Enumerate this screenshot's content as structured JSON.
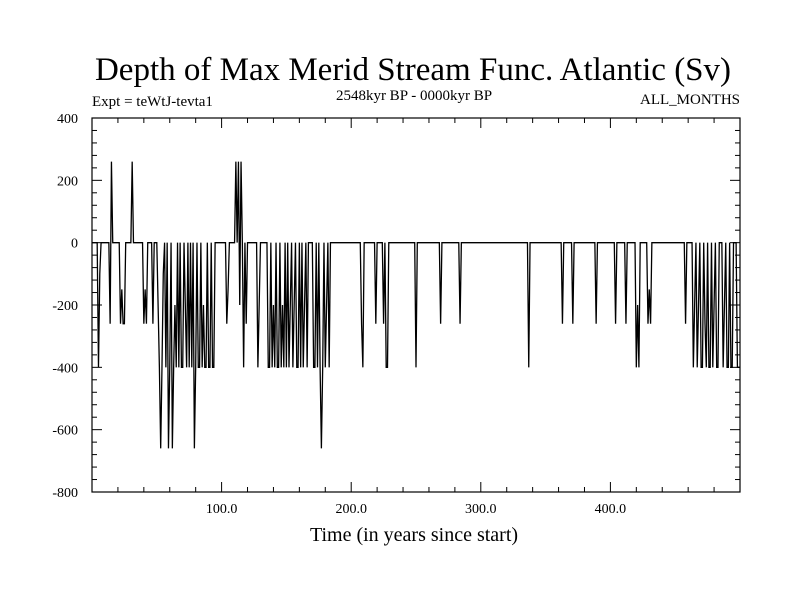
{
  "chart_data": {
    "type": "line",
    "title": "Depth of Max Merid Stream Func. Atlantic (Sv)",
    "left_label": "Expt = teWtJ-tevta1",
    "center_label": "2548kyr BP - 0000kyr BP",
    "right_label": "ALL_MONTHS",
    "xlabel": "Time (in years since start)",
    "ylabel": "",
    "xlim": [
      0,
      500
    ],
    "ylim": [
      -800,
      400
    ],
    "x_ticks": [
      {
        "v": 100,
        "label": "100.0"
      },
      {
        "v": 200,
        "label": "200.0"
      },
      {
        "v": 300,
        "label": "300.0"
      },
      {
        "v": 400,
        "label": "400.0"
      }
    ],
    "y_ticks": [
      {
        "v": 400,
        "label": "400"
      },
      {
        "v": 200,
        "label": "200"
      },
      {
        "v": 0,
        "label": "0"
      },
      {
        "v": -200,
        "label": "-200"
      },
      {
        "v": -400,
        "label": "-400"
      },
      {
        "v": -600,
        "label": "-600"
      },
      {
        "v": -800,
        "label": "-800"
      }
    ],
    "grid": false,
    "series": [
      {
        "name": "",
        "points": [
          [
            0,
            0
          ],
          [
            4,
            0
          ],
          [
            5,
            -400
          ],
          [
            6,
            -100
          ],
          [
            7,
            0
          ],
          [
            13,
            0
          ],
          [
            14,
            -260
          ],
          [
            15,
            260
          ],
          [
            16,
            0
          ],
          [
            21,
            0
          ],
          [
            22,
            -260
          ],
          [
            23,
            -150
          ],
          [
            24,
            -260
          ],
          [
            25,
            -260
          ],
          [
            26,
            0
          ],
          [
            30,
            0
          ],
          [
            31,
            260
          ],
          [
            32,
            0
          ],
          [
            39,
            0
          ],
          [
            40,
            -260
          ],
          [
            41,
            -150
          ],
          [
            42,
            -260
          ],
          [
            43,
            0
          ],
          [
            46,
            0
          ],
          [
            47,
            -260
          ],
          [
            48,
            0
          ],
          [
            50,
            0
          ],
          [
            52,
            -400
          ],
          [
            53,
            -660
          ],
          [
            54,
            -400
          ],
          [
            55,
            -100
          ],
          [
            56,
            0
          ],
          [
            57,
            -400
          ],
          [
            58,
            0
          ],
          [
            59,
            -660
          ],
          [
            60,
            -400
          ],
          [
            61,
            0
          ],
          [
            62,
            -660
          ],
          [
            63,
            -400
          ],
          [
            64,
            -200
          ],
          [
            65,
            -400
          ],
          [
            66,
            0
          ],
          [
            67,
            -400
          ],
          [
            68,
            0
          ],
          [
            69,
            -400
          ],
          [
            70,
            -400
          ],
          [
            71,
            0
          ],
          [
            72,
            -200
          ],
          [
            73,
            -400
          ],
          [
            74,
            0
          ],
          [
            75,
            -400
          ],
          [
            76,
            0
          ],
          [
            77,
            -400
          ],
          [
            78,
            0
          ],
          [
            79,
            -660
          ],
          [
            80,
            -400
          ],
          [
            81,
            0
          ],
          [
            82,
            -400
          ],
          [
            83,
            -400
          ],
          [
            84,
            0
          ],
          [
            85,
            -400
          ],
          [
            86,
            -200
          ],
          [
            87,
            -400
          ],
          [
            88,
            -400
          ],
          [
            89,
            0
          ],
          [
            90,
            -400
          ],
          [
            91,
            -400
          ],
          [
            92,
            0
          ],
          [
            93,
            -400
          ],
          [
            94,
            -400
          ],
          [
            95,
            0
          ],
          [
            103,
            0
          ],
          [
            104,
            -260
          ],
          [
            105,
            -150
          ],
          [
            106,
            0
          ],
          [
            110,
            0
          ],
          [
            111,
            260
          ],
          [
            112,
            0
          ],
          [
            113,
            260
          ],
          [
            114,
            -200
          ],
          [
            115,
            260
          ],
          [
            116,
            0
          ],
          [
            117,
            -400
          ],
          [
            118,
            0
          ],
          [
            119,
            -260
          ],
          [
            120,
            0
          ],
          [
            127,
            0
          ],
          [
            128,
            -400
          ],
          [
            129,
            -200
          ],
          [
            130,
            0
          ],
          [
            135,
            0
          ],
          [
            136,
            -400
          ],
          [
            137,
            -400
          ],
          [
            138,
            0
          ],
          [
            139,
            -400
          ],
          [
            140,
            -200
          ],
          [
            141,
            -400
          ],
          [
            142,
            0
          ],
          [
            143,
            -400
          ],
          [
            144,
            -400
          ],
          [
            145,
            0
          ],
          [
            146,
            -400
          ],
          [
            147,
            -200
          ],
          [
            148,
            -400
          ],
          [
            149,
            0
          ],
          [
            150,
            -400
          ],
          [
            151,
            0
          ],
          [
            152,
            -400
          ],
          [
            153,
            -200
          ],
          [
            154,
            0
          ],
          [
            155,
            -400
          ],
          [
            157,
            0
          ],
          [
            158,
            -400
          ],
          [
            159,
            -400
          ],
          [
            160,
            0
          ],
          [
            161,
            -400
          ],
          [
            162,
            0
          ],
          [
            163,
            -400
          ],
          [
            164,
            -200
          ],
          [
            165,
            0
          ],
          [
            166,
            -400
          ],
          [
            167,
            0
          ],
          [
            170,
            0
          ],
          [
            171,
            -400
          ],
          [
            172,
            -400
          ],
          [
            173,
            0
          ],
          [
            174,
            -400
          ],
          [
            175,
            0
          ],
          [
            176,
            -400
          ],
          [
            177,
            -660
          ],
          [
            178,
            -400
          ],
          [
            179,
            0
          ],
          [
            180,
            -400
          ],
          [
            181,
            -200
          ],
          [
            182,
            0
          ],
          [
            183,
            -400
          ],
          [
            184,
            0
          ],
          [
            207,
            0
          ],
          [
            208,
            -260
          ],
          [
            209,
            -400
          ],
          [
            210,
            0
          ],
          [
            218,
            0
          ],
          [
            219,
            -260
          ],
          [
            220,
            0
          ],
          [
            224,
            0
          ],
          [
            225,
            -260
          ],
          [
            226,
            0
          ],
          [
            227,
            -400
          ],
          [
            228,
            -400
          ],
          [
            229,
            0
          ],
          [
            249,
            0
          ],
          [
            250,
            -400
          ],
          [
            251,
            0
          ],
          [
            268,
            0
          ],
          [
            269,
            -260
          ],
          [
            270,
            0
          ],
          [
            283,
            0
          ],
          [
            284,
            -260
          ],
          [
            285,
            0
          ],
          [
            336,
            0
          ],
          [
            337,
            -400
          ],
          [
            338,
            0
          ],
          [
            362,
            0
          ],
          [
            363,
            -260
          ],
          [
            364,
            0
          ],
          [
            370,
            0
          ],
          [
            371,
            -260
          ],
          [
            372,
            0
          ],
          [
            388,
            0
          ],
          [
            389,
            -260
          ],
          [
            390,
            0
          ],
          [
            403,
            0
          ],
          [
            404,
            -260
          ],
          [
            405,
            0
          ],
          [
            411,
            0
          ],
          [
            412,
            -260
          ],
          [
            413,
            0
          ],
          [
            419,
            0
          ],
          [
            420,
            -400
          ],
          [
            421,
            -200
          ],
          [
            422,
            -400
          ],
          [
            423,
            0
          ],
          [
            428,
            0
          ],
          [
            429,
            -260
          ],
          [
            430,
            -150
          ],
          [
            431,
            -260
          ],
          [
            432,
            0
          ],
          [
            457,
            0
          ],
          [
            458,
            -260
          ],
          [
            459,
            0
          ],
          [
            463,
            0
          ],
          [
            464,
            -400
          ],
          [
            465,
            -200
          ],
          [
            466,
            0
          ],
          [
            467,
            -400
          ],
          [
            468,
            -200
          ],
          [
            469,
            0
          ],
          [
            470,
            -400
          ],
          [
            471,
            -400
          ],
          [
            472,
            0
          ],
          [
            473,
            -260
          ],
          [
            474,
            -400
          ],
          [
            475,
            0
          ],
          [
            476,
            -400
          ],
          [
            477,
            -400
          ],
          [
            478,
            0
          ],
          [
            479,
            -400
          ],
          [
            480,
            -200
          ],
          [
            481,
            0
          ],
          [
            482,
            -400
          ],
          [
            483,
            -400
          ],
          [
            484,
            0
          ],
          [
            486,
            0
          ],
          [
            487,
            -400
          ],
          [
            488,
            -200
          ],
          [
            489,
            0
          ],
          [
            490,
            -400
          ],
          [
            491,
            -400
          ],
          [
            492,
            0
          ],
          [
            493,
            -400
          ],
          [
            494,
            -400
          ],
          [
            495,
            0
          ],
          [
            497,
            0
          ],
          [
            498,
            -400
          ],
          [
            500,
            -400
          ]
        ]
      }
    ]
  }
}
